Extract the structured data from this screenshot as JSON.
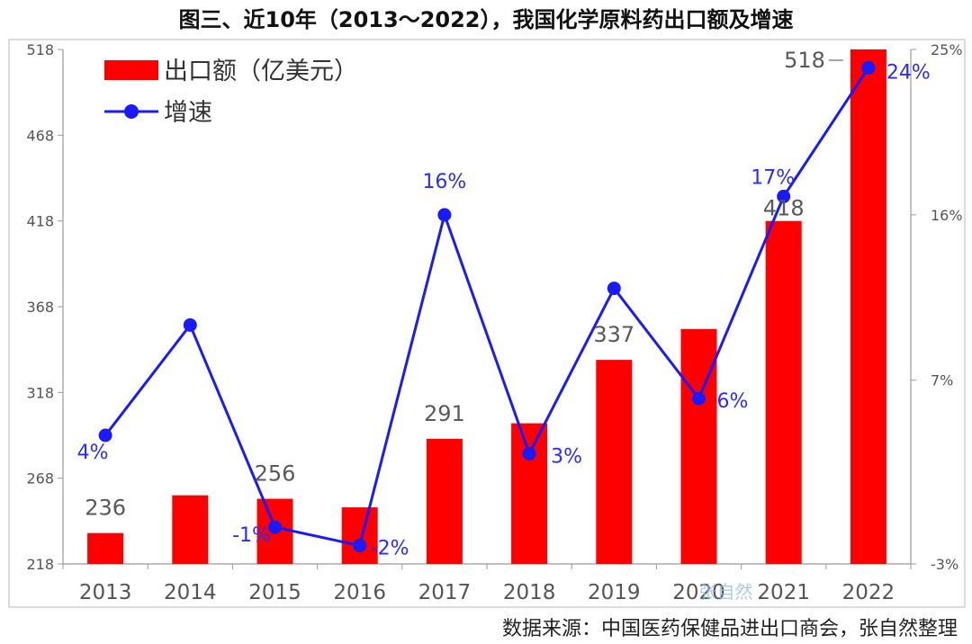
{
  "chart_data": {
    "type": "bar",
    "title": "图三、近10年（2013～2022），我国化学原料药出口额及增速",
    "categories": [
      "2013",
      "2014",
      "2015",
      "2016",
      "2017",
      "2018",
      "2019",
      "2020",
      "2021",
      "2022"
    ],
    "series": [
      {
        "name": "出口额（亿美元）",
        "type": "bar",
        "axis": "left",
        "color": "#ff0000",
        "values": [
          236,
          258,
          256,
          251,
          291,
          300,
          337,
          355,
          418,
          518
        ],
        "labels": [
          "236",
          "",
          "256",
          "",
          "291",
          "",
          "337",
          "",
          "418",
          "518"
        ]
      },
      {
        "name": "增速",
        "type": "line",
        "axis": "right",
        "color": "#1a1aff",
        "values": [
          4,
          10,
          -1,
          -2,
          16,
          3,
          12,
          6,
          17,
          24
        ],
        "labels": [
          "4%",
          "",
          "-1%",
          "-2%",
          "16%",
          "3%",
          "",
          "6%",
          "17%",
          "24%"
        ]
      }
    ],
    "y_left": {
      "ylim": [
        218,
        518
      ],
      "ticks": [
        "218",
        "268",
        "318",
        "368",
        "418",
        "468",
        "518"
      ]
    },
    "y_right": {
      "ylim": [
        -3,
        25
      ],
      "ticks": [
        "-3%",
        "7%",
        "16%",
        "25%"
      ]
    },
    "legend": {
      "position": "top-left"
    },
    "grid": false
  },
  "source_note": "数据来源：中国医药保健品进出口商会，张自然整理",
  "watermark": "张自然"
}
